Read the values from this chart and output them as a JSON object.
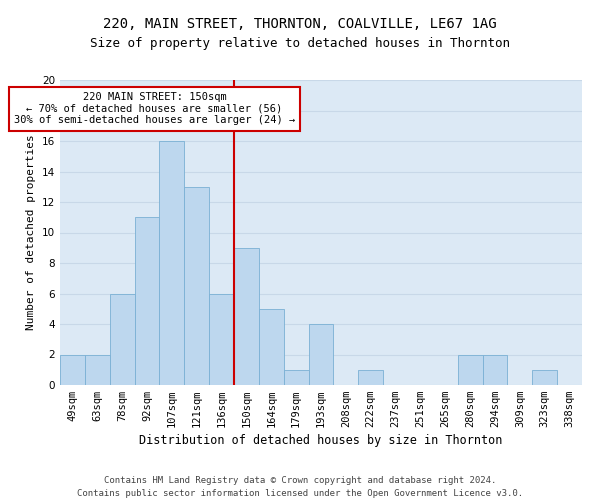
{
  "title1": "220, MAIN STREET, THORNTON, COALVILLE, LE67 1AG",
  "title2": "Size of property relative to detached houses in Thornton",
  "xlabel": "Distribution of detached houses by size in Thornton",
  "ylabel": "Number of detached properties",
  "categories": [
    "49sqm",
    "63sqm",
    "78sqm",
    "92sqm",
    "107sqm",
    "121sqm",
    "136sqm",
    "150sqm",
    "164sqm",
    "179sqm",
    "193sqm",
    "208sqm",
    "222sqm",
    "237sqm",
    "251sqm",
    "265sqm",
    "280sqm",
    "294sqm",
    "309sqm",
    "323sqm",
    "338sqm"
  ],
  "values": [
    2,
    2,
    6,
    11,
    16,
    13,
    6,
    9,
    5,
    1,
    4,
    0,
    1,
    0,
    0,
    0,
    2,
    2,
    0,
    1,
    0
  ],
  "bar_color": "#bdd7ee",
  "bar_edge_color": "#7ab0d4",
  "vline_color": "#cc0000",
  "annotation_text": "220 MAIN STREET: 150sqm\n← 70% of detached houses are smaller (56)\n30% of semi-detached houses are larger (24) →",
  "annotation_box_color": "#ffffff",
  "annotation_box_edge": "#cc0000",
  "ylim": [
    0,
    20
  ],
  "yticks": [
    0,
    2,
    4,
    6,
    8,
    10,
    12,
    14,
    16,
    18,
    20
  ],
  "grid_color": "#c8d8e8",
  "bg_color": "#dce9f5",
  "footer": "Contains HM Land Registry data © Crown copyright and database right 2024.\nContains public sector information licensed under the Open Government Licence v3.0.",
  "title1_fontsize": 10,
  "title2_fontsize": 9,
  "xlabel_fontsize": 8.5,
  "ylabel_fontsize": 8,
  "tick_fontsize": 7.5,
  "footer_fontsize": 6.5,
  "annot_fontsize": 7.5
}
